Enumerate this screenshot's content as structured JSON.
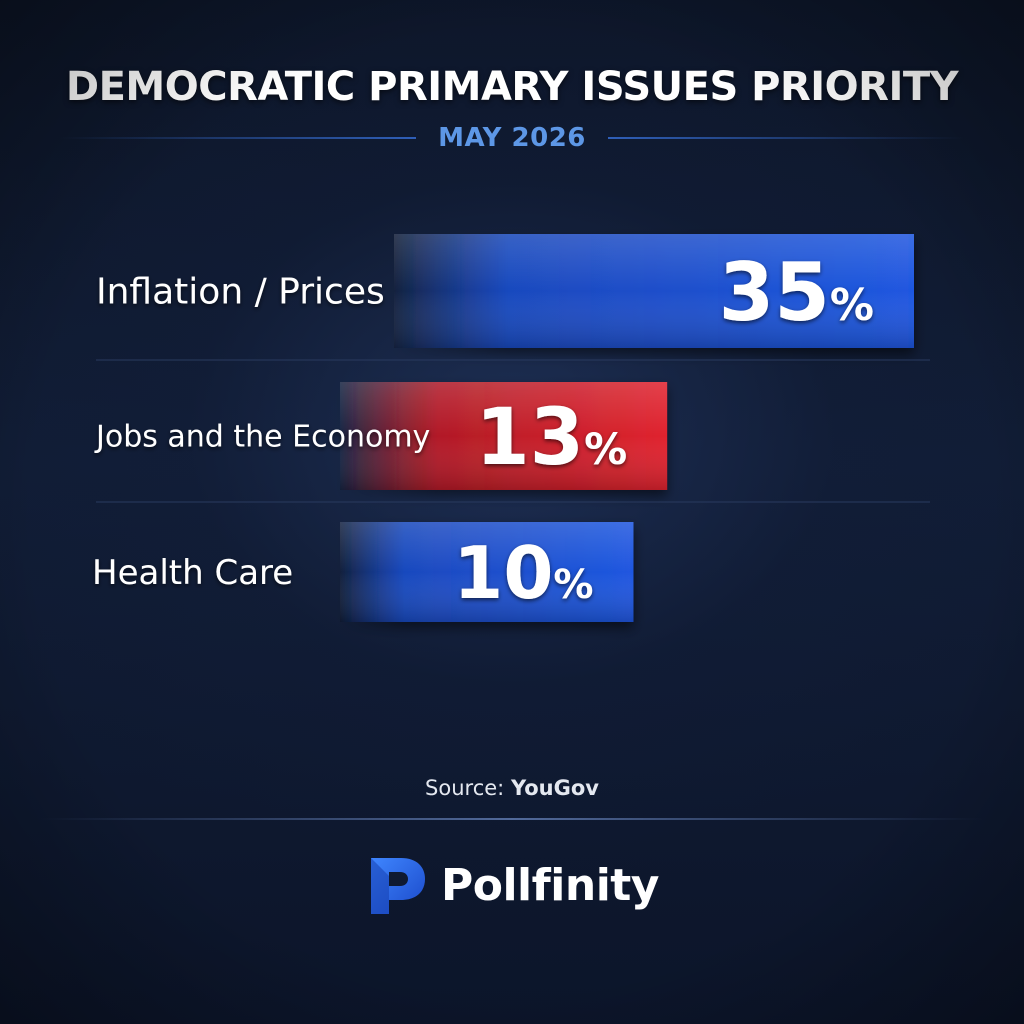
{
  "header": {
    "title": "DEMOCRATIC PRIMARY ISSUES PRIORITY",
    "subtitle": "MAY 2026"
  },
  "chart_data": {
    "type": "bar",
    "orientation": "horizontal",
    "title": "DEMOCRATIC PRIMARY ISSUES PRIORITY",
    "subtitle": "MAY 2026",
    "categories": [
      "Inflation / Prices",
      "Jobs and the Economy",
      "Health Care"
    ],
    "values": [
      35,
      13,
      10
    ],
    "value_labels": [
      "35%",
      "13%",
      "10%"
    ],
    "bar_colors": [
      "#1e54d8",
      "#d6202a",
      "#1e54d8"
    ],
    "unit": "%",
    "grid": false,
    "legend": "none"
  },
  "footer": {
    "source_prefix": "Source: ",
    "source_name": "YouGov",
    "brand_name": "Pollfinity",
    "brand_icon": "pollfinity-p-logo-icon"
  },
  "colors": {
    "background": "#0f1a31",
    "accent_blue": "#1e54d8",
    "accent_red": "#d6202a",
    "subtitle_blue": "#5d97e6"
  }
}
